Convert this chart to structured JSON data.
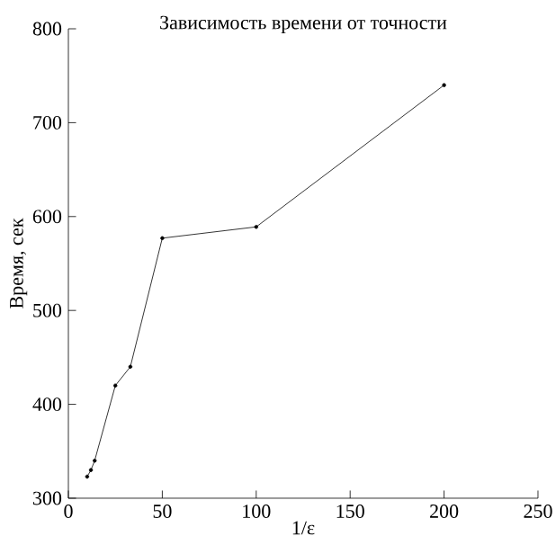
{
  "chart_data": {
    "type": "line",
    "title": "Зависимость времени от точности",
    "xlabel": "1/ε",
    "ylabel": "Время, сек",
    "x": [
      10,
      12,
      14,
      25,
      33,
      50,
      100,
      200
    ],
    "values": [
      323,
      330,
      340,
      420,
      440,
      577,
      589,
      740
    ],
    "color": "#000000",
    "marker": "circle",
    "line_style": "solid",
    "grid": false,
    "xlim": [
      0,
      250
    ],
    "xticks": [
      0,
      50,
      100,
      150,
      200,
      250
    ],
    "ylim": [
      300,
      800
    ],
    "yticks": [
      300,
      400,
      500,
      600,
      700,
      800
    ]
  }
}
